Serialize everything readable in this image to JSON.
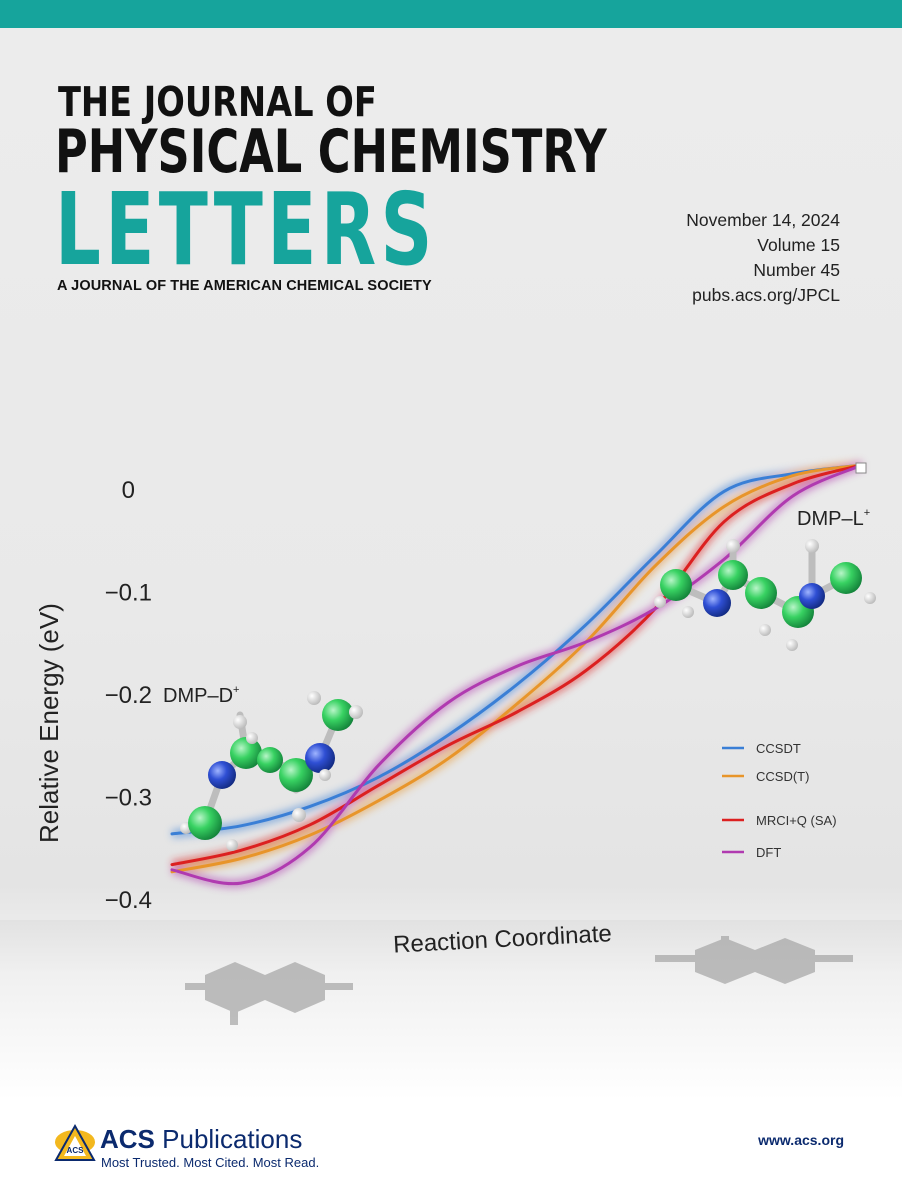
{
  "colors": {
    "accent": "#16a49c",
    "title": "#111111",
    "brand": "#0b2a6e"
  },
  "journal": {
    "title_line1": "THE JOURNAL OF",
    "title_line2": "PHYSICAL CHEMISTRY",
    "title_line3": "LETTERS",
    "subtitle": "A JOURNAL OF THE AMERICAN CHEMICAL SOCIETY"
  },
  "issue": {
    "date": "November 14, 2024",
    "volume": "Volume 15",
    "number": "Number 45",
    "url": "pubs.acs.org/JPCL"
  },
  "chart_data": {
    "type": "line",
    "title": "",
    "xlabel": "Reaction Coordinate",
    "ylabel": "Relative Energy (eV)",
    "ylim": [
      -0.4,
      0
    ],
    "y_ticks": [
      0,
      -0.1,
      -0.2,
      -0.3,
      -0.4
    ],
    "y_tick_labels": [
      "0",
      "−0.1",
      "−0.2",
      "−0.3",
      "−0.4"
    ],
    "x": [
      0,
      0.1,
      0.2,
      0.3,
      0.4,
      0.5,
      0.6,
      0.7,
      0.8,
      0.9,
      1.0
    ],
    "series": [
      {
        "name": "CCSDT",
        "color": "#3a7fd6",
        "values": [
          -0.355,
          -0.348,
          -0.33,
          -0.302,
          -0.262,
          -0.213,
          -0.155,
          -0.088,
          -0.025,
          -0.008,
          0.0
        ]
      },
      {
        "name": "CCSD(T)",
        "color": "#e8952a",
        "values": [
          -0.392,
          -0.38,
          -0.358,
          -0.325,
          -0.285,
          -0.232,
          -0.172,
          -0.098,
          -0.04,
          -0.01,
          0.0
        ]
      },
      {
        "name": "MRCI+Q (SA)",
        "color": "#dc2020",
        "values": [
          -0.385,
          -0.372,
          -0.348,
          -0.31,
          -0.272,
          -0.24,
          -0.2,
          -0.14,
          -0.055,
          -0.018,
          0.0
        ]
      },
      {
        "name": "DFT",
        "color": "#b03ab0",
        "values": [
          -0.39,
          -0.404,
          -0.37,
          -0.29,
          -0.23,
          -0.195,
          -0.172,
          -0.14,
          -0.092,
          -0.03,
          0.0
        ]
      }
    ],
    "annotations": [
      {
        "text": "DMP–D",
        "superscript": "+"
      },
      {
        "text": "DMP–L",
        "superscript": "+"
      }
    ],
    "legend_position": "bottom-right",
    "grid": false
  },
  "footer": {
    "brand_bold": "ACS",
    "brand_rest": "Publications",
    "tagline": "Most Trusted. Most Cited. Most Read.",
    "website": "www.acs.org"
  }
}
